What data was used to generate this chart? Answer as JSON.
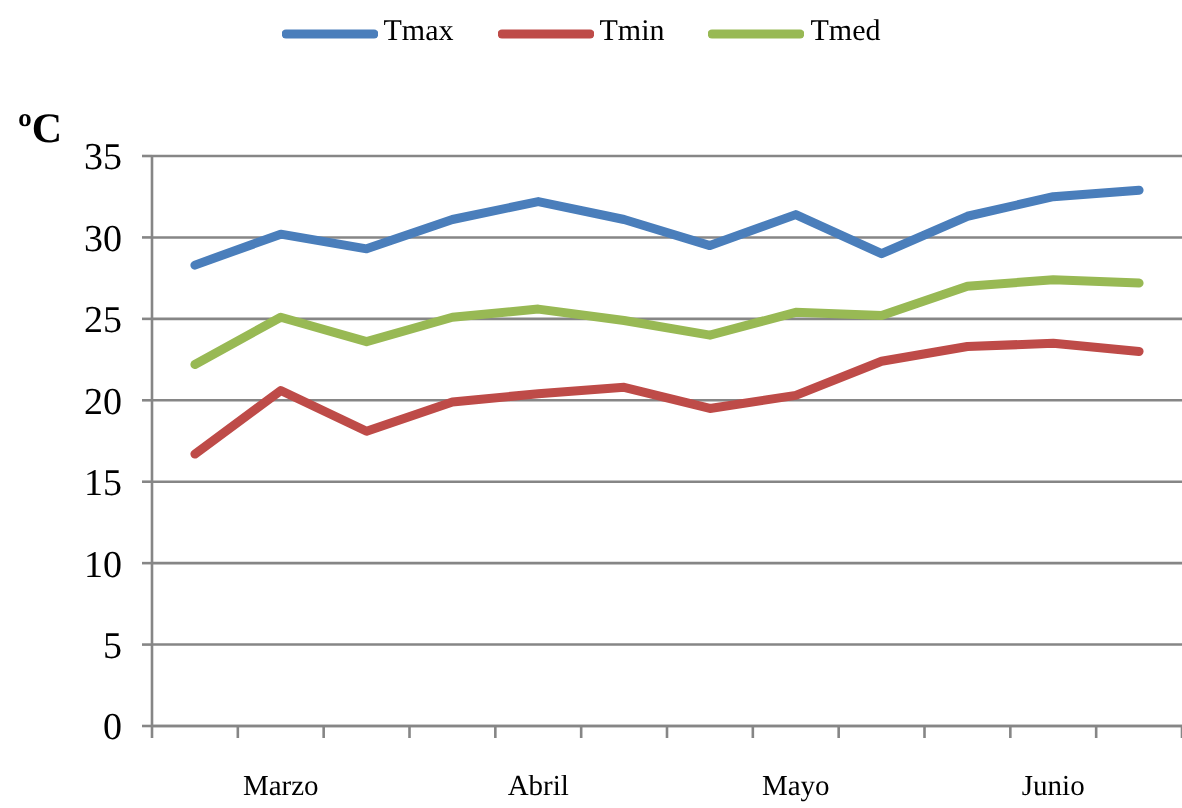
{
  "chart_data": {
    "type": "line",
    "ylabel": "ºC",
    "categories": [
      null,
      "Marzo",
      null,
      null,
      "Abril",
      null,
      null,
      "Mayo",
      null,
      null,
      "Junio",
      null
    ],
    "series": [
      {
        "name": "Tmax",
        "color": "#4a7ebb",
        "values": [
          28.3,
          30.2,
          29.3,
          31.1,
          32.2,
          31.1,
          29.5,
          31.4,
          29.0,
          31.3,
          32.5,
          32.9
        ]
      },
      {
        "name": "Tmin",
        "color": "#be4b48",
        "values": [
          16.7,
          20.6,
          18.1,
          19.9,
          20.4,
          20.8,
          19.5,
          20.3,
          22.4,
          23.3,
          23.5,
          23.0
        ]
      },
      {
        "name": "Tmed",
        "color": "#98b954",
        "values": [
          22.2,
          25.1,
          23.6,
          25.1,
          25.6,
          24.9,
          24.0,
          25.4,
          25.2,
          27.0,
          27.4,
          27.2
        ]
      }
    ],
    "ylim": [
      0,
      35
    ],
    "yticks": [
      0,
      5,
      10,
      15,
      20,
      25,
      30,
      35
    ],
    "grid": "y",
    "legend": "top",
    "marker": "none",
    "line_style": "solid"
  }
}
